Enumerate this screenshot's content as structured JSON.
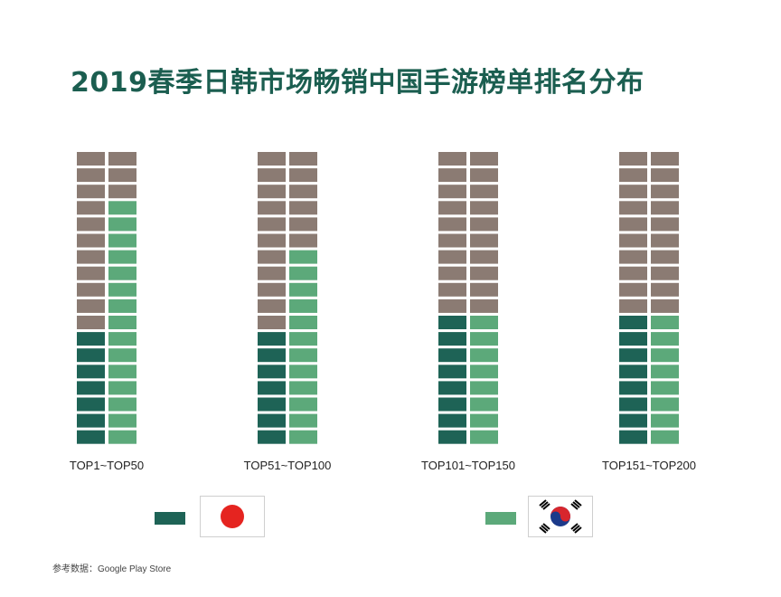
{
  "title": "2019春季日韩市场畅销中国手游榜单排名分布",
  "source": "参考数据：Google Play Store",
  "colors": {
    "japan": "#1e6356",
    "korea": "#5ca97a",
    "other": "#8b7b73"
  },
  "legend": [
    {
      "name": "japan",
      "color": "#1e6356",
      "flag": "japan-flag"
    },
    {
      "name": "korea",
      "color": "#5ca97a",
      "flag": "korea-flag"
    }
  ],
  "chart_data": {
    "type": "waffle",
    "cells_per_group": 36,
    "groups": [
      {
        "label": "TOP1~TOP50",
        "japan": 7,
        "korea": 15
      },
      {
        "label": "TOP51~TOP100",
        "japan": 7,
        "korea": 12
      },
      {
        "label": "TOP101~TOP150",
        "japan": 8,
        "korea": 8
      },
      {
        "label": "TOP151~TOP200",
        "japan": 8,
        "korea": 8
      }
    ]
  }
}
